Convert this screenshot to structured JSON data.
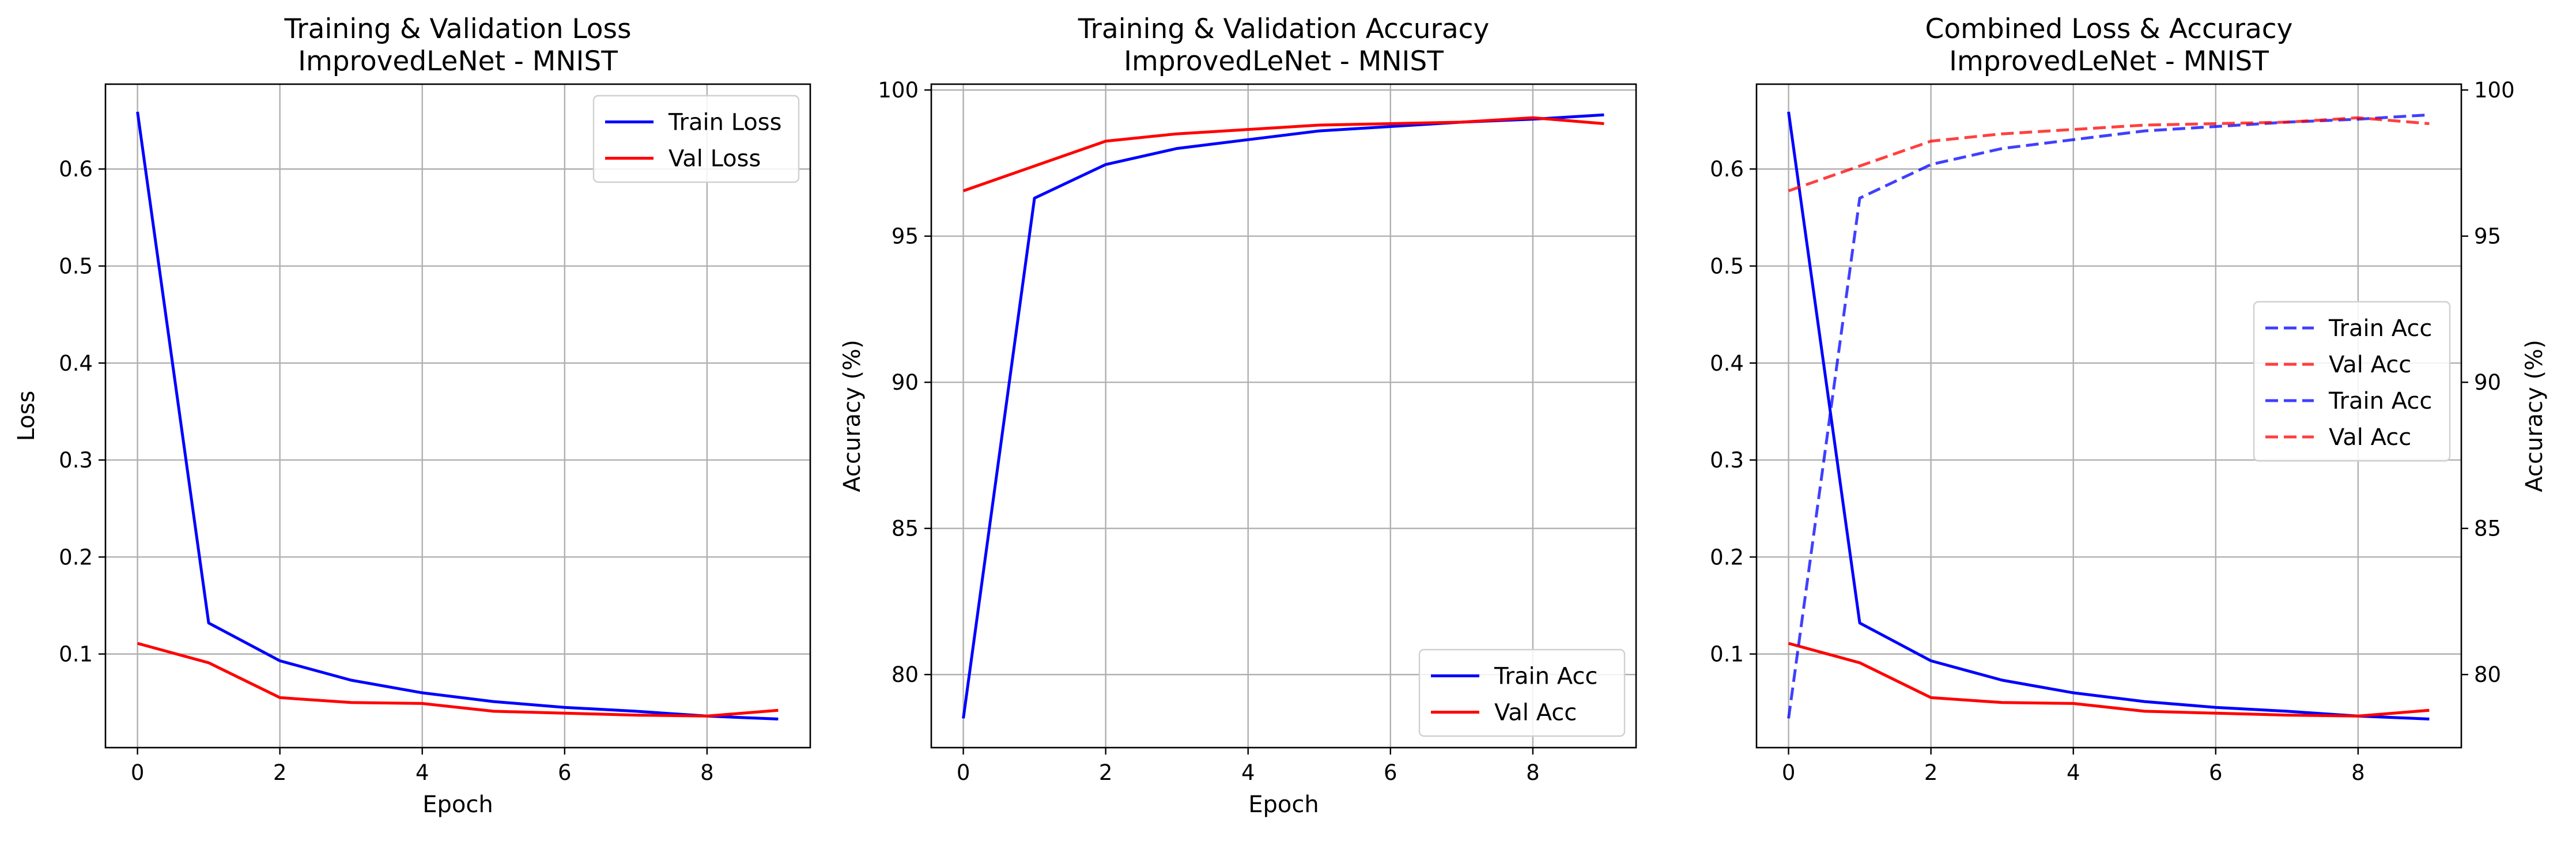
{
  "colors": {
    "train": "#0000ff",
    "val": "#ff0000",
    "grid": "#b0b0b0",
    "axis": "#000000"
  },
  "chart_data": [
    {
      "type": "line",
      "title": [
        "Training & Validation Loss",
        "ImprovedLeNet - MNIST"
      ],
      "xlabel": "Epoch",
      "ylabel": "Loss",
      "x": [
        0,
        1,
        2,
        3,
        4,
        5,
        6,
        7,
        8,
        9
      ],
      "xlim": [
        -0.45,
        9.45
      ],
      "ylim": [
        0.0035,
        0.6875
      ],
      "xticks": [
        0,
        2,
        4,
        6,
        8
      ],
      "yticks": [
        0.1,
        0.2,
        0.3,
        0.4,
        0.5,
        0.6
      ],
      "grid": true,
      "legend": "top-right",
      "series": [
        {
          "name": "Train Loss",
          "color": "train",
          "dash": "solid",
          "values": [
            0.659,
            0.132,
            0.093,
            0.073,
            0.06,
            0.051,
            0.045,
            0.041,
            0.036,
            0.033
          ]
        },
        {
          "name": "Val Loss",
          "color": "val",
          "dash": "solid",
          "values": [
            0.111,
            0.091,
            0.055,
            0.05,
            0.049,
            0.041,
            0.039,
            0.037,
            0.036,
            0.042
          ]
        }
      ]
    },
    {
      "type": "line",
      "title": [
        "Training & Validation Accuracy",
        "ImprovedLeNet - MNIST"
      ],
      "xlabel": "Epoch",
      "ylabel": "Accuracy (%)",
      "x": [
        0,
        1,
        2,
        3,
        4,
        5,
        6,
        7,
        8,
        9
      ],
      "xlim": [
        -0.45,
        9.45
      ],
      "ylim": [
        77.5,
        100.2
      ],
      "xticks": [
        0,
        2,
        4,
        6,
        8
      ],
      "yticks": [
        80,
        85,
        90,
        95,
        100
      ],
      "grid": true,
      "legend": "bottom-right",
      "series": [
        {
          "name": "Train Acc",
          "color": "train",
          "dash": "solid",
          "values": [
            78.5,
            96.3,
            97.45,
            98.0,
            98.3,
            98.6,
            98.75,
            98.9,
            99.0,
            99.15
          ]
        },
        {
          "name": "Val Acc",
          "color": "val",
          "dash": "solid",
          "values": [
            96.55,
            97.4,
            98.25,
            98.5,
            98.65,
            98.8,
            98.85,
            98.9,
            99.05,
            98.85
          ]
        }
      ]
    },
    {
      "type": "line",
      "title": [
        "Combined Loss & Accuracy",
        "ImprovedLeNet - MNIST"
      ],
      "xlabel": "",
      "ylabel": "",
      "y2label": "Accuracy (%)",
      "x": [
        0,
        1,
        2,
        3,
        4,
        5,
        6,
        7,
        8,
        9
      ],
      "xlim": [
        -0.45,
        9.45
      ],
      "ylim": [
        0.0035,
        0.6875
      ],
      "y2lim": [
        77.5,
        100.2
      ],
      "xticks": [
        0,
        2,
        4,
        6,
        8
      ],
      "yticks": [
        0.1,
        0.2,
        0.3,
        0.4,
        0.5,
        0.6
      ],
      "y2ticks": [
        80,
        85,
        90,
        95,
        100
      ],
      "grid": true,
      "legend": "center-right",
      "series": [
        {
          "name": "",
          "axis": "left",
          "color": "train",
          "dash": "solid",
          "opacity": 1,
          "values": [
            0.659,
            0.132,
            0.093,
            0.073,
            0.06,
            0.051,
            0.045,
            0.041,
            0.036,
            0.033
          ]
        },
        {
          "name": "",
          "axis": "left",
          "color": "val",
          "dash": "solid",
          "opacity": 1,
          "values": [
            0.111,
            0.091,
            0.055,
            0.05,
            0.049,
            0.041,
            0.039,
            0.037,
            0.036,
            0.042
          ]
        },
        {
          "name": "Train Acc",
          "axis": "right",
          "color": "train",
          "dash": "dashed",
          "opacity": 0.75,
          "values": [
            78.5,
            96.3,
            97.45,
            98.0,
            98.3,
            98.6,
            98.75,
            98.9,
            99.0,
            99.15
          ]
        },
        {
          "name": "Val Acc",
          "axis": "right",
          "color": "val",
          "dash": "dashed",
          "opacity": 0.75,
          "values": [
            96.55,
            97.4,
            98.25,
            98.5,
            98.65,
            98.8,
            98.85,
            98.9,
            99.05,
            98.85
          ]
        }
      ],
      "legend_entries": [
        {
          "label": "Train Acc",
          "color": "train",
          "dash": "dashed"
        },
        {
          "label": "Val Acc",
          "color": "val",
          "dash": "dashed"
        },
        {
          "label": "Train Acc",
          "color": "train",
          "dash": "dashed"
        },
        {
          "label": "Val Acc",
          "color": "val",
          "dash": "dashed"
        }
      ]
    }
  ]
}
